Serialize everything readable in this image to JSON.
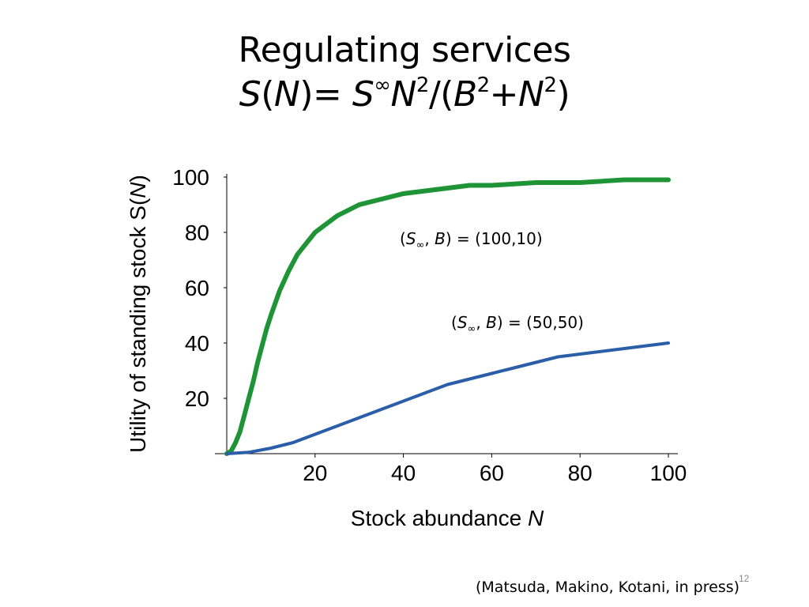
{
  "slide": {
    "title_line1": "Regulating services",
    "title_formula": {
      "s": "S",
      "open_paren": "(",
      "n": "N",
      "close_eq": ")= ",
      "s_inf": "S",
      "inf": "∞",
      "n2": "N",
      "sq": "2",
      "slash_open": "/(",
      "b": "B",
      "sq_b": "2",
      "plus": "+",
      "n3": "N",
      "sq_n": "2",
      "close": ")"
    },
    "slide_number": "12",
    "citation": "(Matsuda, Makino, Kotani, in press)"
  },
  "annotations": [
    {
      "open": "(",
      "s": "S",
      "inf": "∞",
      "comma": ", ",
      "b": "B",
      "rest": ") = (100,10)"
    },
    {
      "open": "(",
      "s": "S",
      "inf": "∞",
      "comma": ", ",
      "b": "B",
      "rest": ") = (50,50)"
    }
  ],
  "chart_data": {
    "type": "line",
    "xlabel": "Stock abundance N",
    "ylabel": "Utility of standing stock S(N)",
    "xlim": [
      0,
      100
    ],
    "ylim": [
      0,
      100
    ],
    "x_ticks": [
      20,
      40,
      60,
      80,
      100
    ],
    "y_ticks": [
      20,
      40,
      60,
      80,
      100
    ],
    "grid": false,
    "series": [
      {
        "name": "(S∞, B) = (100,10)",
        "color": "#1f9436",
        "x": [
          0,
          1,
          2,
          3,
          4,
          5,
          6,
          7,
          8,
          9,
          10,
          12,
          14,
          16,
          18,
          20,
          25,
          30,
          35,
          40,
          45,
          50,
          55,
          60,
          70,
          80,
          90,
          100
        ],
        "y": [
          0,
          1,
          4,
          8,
          14,
          20,
          26,
          33,
          39,
          45,
          50,
          59,
          66,
          72,
          76,
          80,
          86,
          90,
          92,
          94,
          95,
          96,
          97,
          97,
          98,
          98,
          99,
          99
        ]
      },
      {
        "name": "(S∞, B) = (50,50)",
        "color": "#2a5ea8",
        "x": [
          0,
          5,
          10,
          15,
          20,
          25,
          30,
          35,
          40,
          45,
          50,
          55,
          60,
          65,
          70,
          75,
          80,
          85,
          90,
          95,
          100
        ],
        "y": [
          0,
          0.5,
          2,
          4,
          7,
          10,
          13,
          16,
          19,
          22,
          25,
          27,
          29,
          31,
          33,
          35,
          36,
          37,
          38,
          39,
          40
        ]
      }
    ]
  }
}
